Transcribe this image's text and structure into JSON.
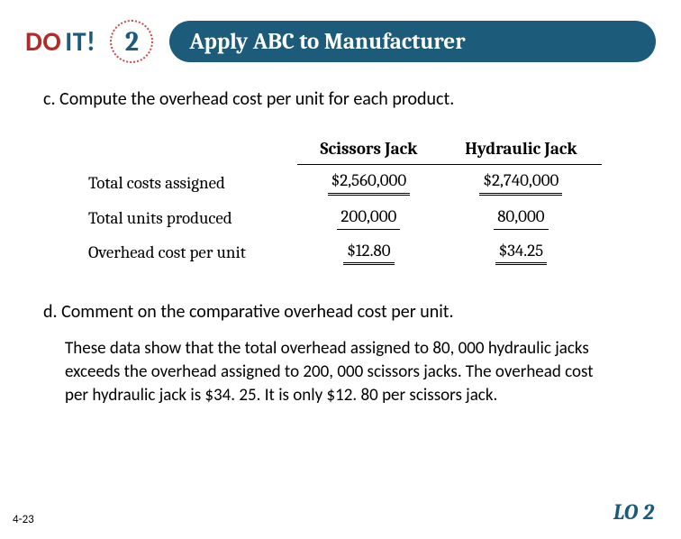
{
  "header": {
    "do": "DO",
    "it": "IT!",
    "badge": "2",
    "banner": "Apply ABC to Manufacturer"
  },
  "questionC": "c. Compute the overhead cost per unit for each product.",
  "table": {
    "col1": "Scissors Jack",
    "col2": "Hydraulic Jack",
    "rows": {
      "r1": {
        "label": "Total costs assigned",
        "v1": "$2,560,000",
        "v2": "$2,740,000"
      },
      "r2": {
        "label": "Total units produced",
        "v1": "200,000",
        "v2": "80,000"
      },
      "r3": {
        "label": "Overhead cost per unit",
        "v1": "$12.80",
        "v2": "$34.25"
      }
    }
  },
  "questionD": "d.  Comment on the comparative overhead cost per unit.",
  "answerD": "These data show that the total overhead assigned to 80, 000 hydraulic jacks exceeds the overhead assigned to 200, 000 scissors jacks. The overhead cost per hydraulic jack is $34. 25. It is only $12. 80 per scissors jack.",
  "footer": {
    "left": "4-23",
    "right": "LO 2"
  }
}
